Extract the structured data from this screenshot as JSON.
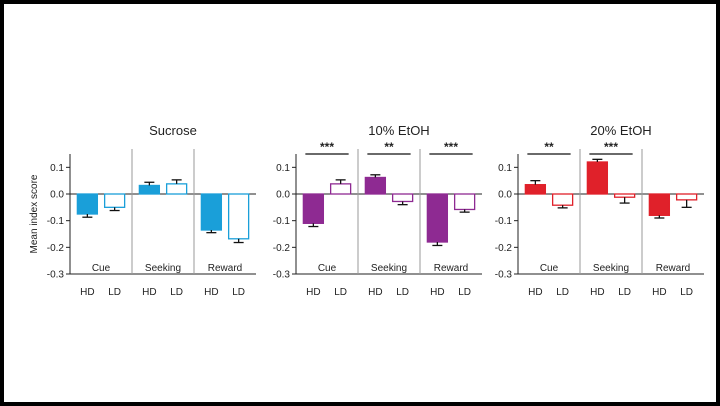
{
  "chart_data": {
    "type": "bar",
    "ylabel": "Mean index score",
    "ylim": [
      -0.3,
      0.15
    ],
    "yticks": [
      -0.3,
      -0.2,
      -0.1,
      0.0,
      0.1
    ],
    "ytick_labels": [
      "-0.3",
      "-0.2",
      "-0.1",
      "0.0",
      "0.1"
    ],
    "groups": [
      "Cue",
      "Seeking",
      "Reward"
    ],
    "categories": [
      "HD",
      "LD"
    ],
    "panels": [
      {
        "title": "Sucrose",
        "color": "#1a9fd9",
        "groups": [
          {
            "label": "Cue",
            "values": [
              -0.075,
              -0.05
            ],
            "errors": [
              0.012,
              0.012
            ],
            "sig": ""
          },
          {
            "label": "Seeking",
            "values": [
              0.032,
              0.038
            ],
            "errors": [
              0.012,
              0.015
            ],
            "sig": ""
          },
          {
            "label": "Reward",
            "values": [
              -0.135,
              -0.168
            ],
            "errors": [
              0.01,
              0.014
            ],
            "sig": ""
          }
        ]
      },
      {
        "title": "10% EtOH",
        "color": "#8e2a92",
        "groups": [
          {
            "label": "Cue",
            "values": [
              -0.11,
              0.038
            ],
            "errors": [
              0.012,
              0.015
            ],
            "sig": "***"
          },
          {
            "label": "Seeking",
            "values": [
              0.062,
              -0.028
            ],
            "errors": [
              0.01,
              0.012
            ],
            "sig": "**"
          },
          {
            "label": "Reward",
            "values": [
              -0.18,
              -0.058
            ],
            "errors": [
              0.013,
              0.01
            ],
            "sig": "***"
          }
        ]
      },
      {
        "title": "20% EtOH",
        "color": "#e0212a",
        "groups": [
          {
            "label": "Cue",
            "values": [
              0.035,
              -0.042
            ],
            "errors": [
              0.015,
              0.01
            ],
            "sig": "**"
          },
          {
            "label": "Seeking",
            "values": [
              0.12,
              -0.012
            ],
            "errors": [
              0.01,
              0.022
            ],
            "sig": "***"
          },
          {
            "label": "Reward",
            "values": [
              -0.08,
              -0.022
            ],
            "errors": [
              0.01,
              0.028
            ],
            "sig": ""
          }
        ]
      }
    ]
  }
}
